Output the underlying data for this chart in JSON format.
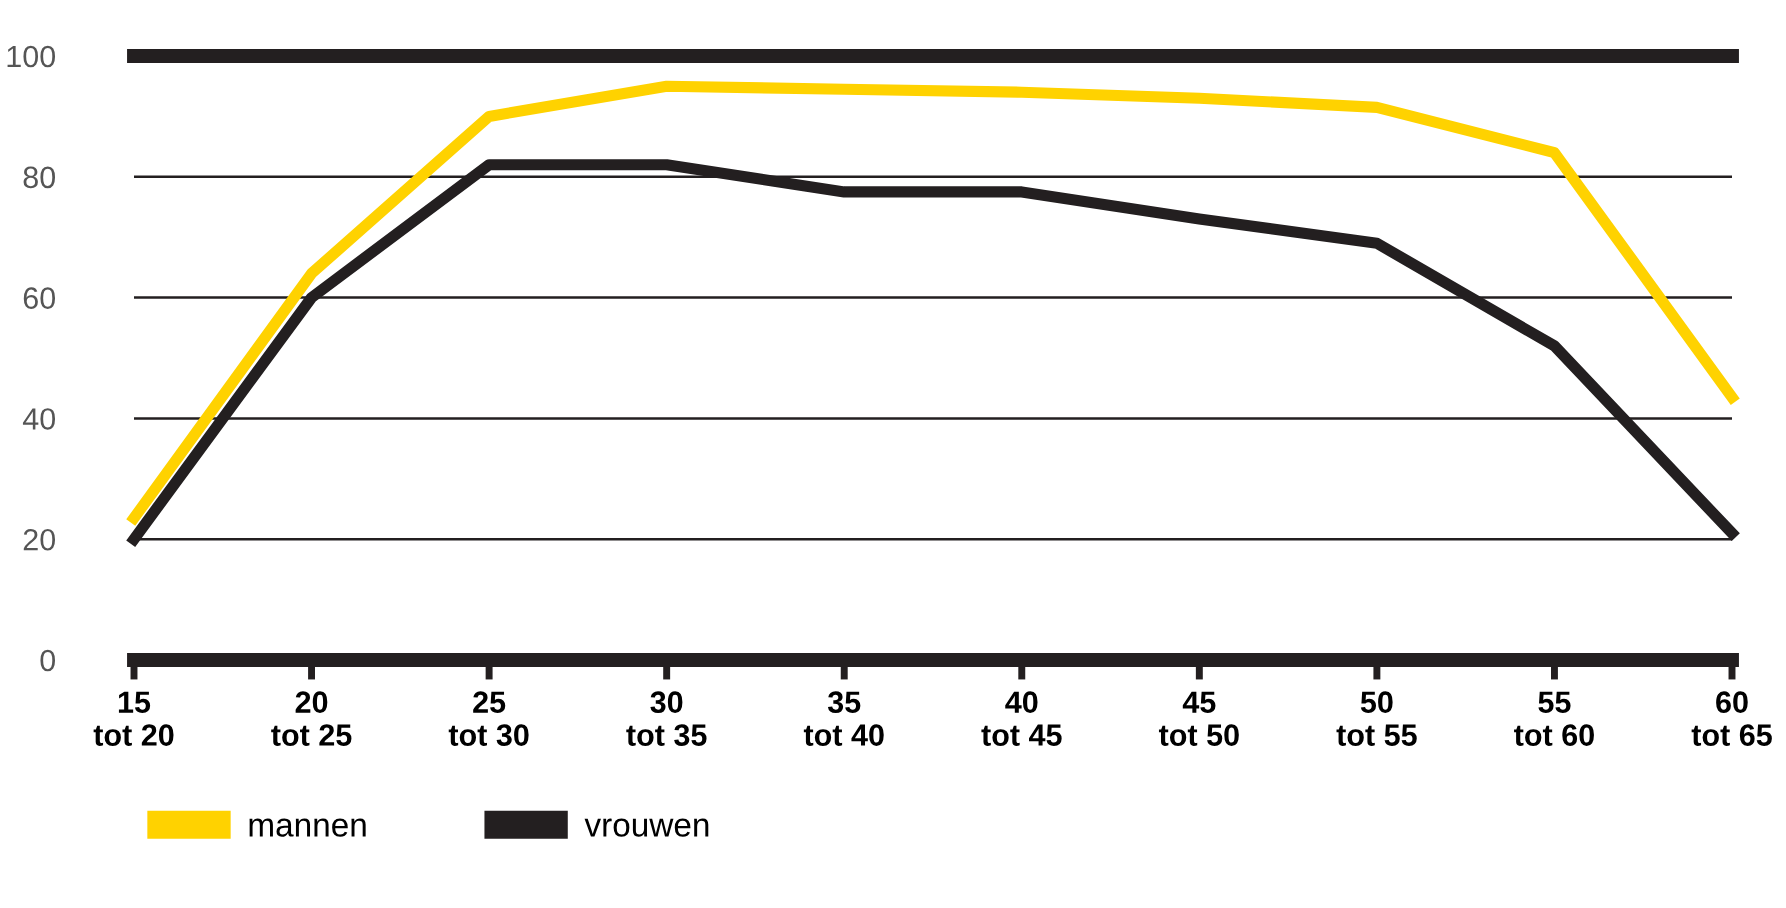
{
  "chart_data": {
    "type": "line",
    "categories": [
      "15\ntot 20",
      "20\ntot 25",
      "25\ntot 30",
      "30\ntot 35",
      "35\ntot 40",
      "40\ntot 45",
      "45\ntot 50",
      "50\ntot 55",
      "55\ntot 60",
      "60\ntot 65"
    ],
    "series": [
      {
        "name": "mannen",
        "color": "#ffd200",
        "values": [
          23.5,
          64,
          90,
          95,
          94.5,
          94,
          93,
          91.5,
          84,
          43.5
        ]
      },
      {
        "name": "vrouwen",
        "color": "#231f20",
        "values": [
          20,
          60,
          82,
          82,
          77.5,
          77.5,
          73,
          69,
          52,
          21
        ]
      }
    ],
    "ylim": [
      0,
      100
    ],
    "yticks": [
      0,
      20,
      40,
      60,
      80,
      100
    ],
    "grid": "y",
    "legend": "bottom left",
    "marker": "none",
    "line_style": "solid"
  }
}
